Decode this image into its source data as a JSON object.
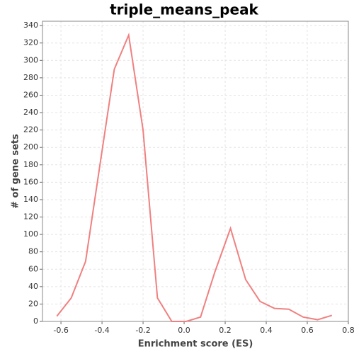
{
  "chart_data": {
    "type": "line",
    "title": "triple_means_peak",
    "x_label": "Enrichment score (ES)",
    "y_label": "# of gene sets",
    "x": [
      -0.62,
      -0.55,
      -0.48,
      -0.41,
      -0.34,
      -0.27,
      -0.2,
      -0.13,
      -0.06,
      0.01,
      0.08,
      0.15,
      0.226,
      0.3,
      0.37,
      0.44,
      0.51,
      0.58,
      0.65,
      0.72
    ],
    "series": [
      {
        "name": "triple_means_peak",
        "color": "#f08080",
        "values": [
          6,
          27,
          69,
          180,
          290,
          329,
          220,
          27,
          0,
          0,
          5,
          57,
          107,
          48,
          23,
          15,
          14,
          5,
          2,
          7
        ]
      }
    ],
    "xlim": [
      -0.69,
      0.8
    ],
    "xticks": [
      -0.6,
      -0.4,
      -0.2,
      {
        "value": 0,
        "label": "0.0"
      },
      0.2,
      0.4,
      0.6,
      0.8
    ],
    "ylim": [
      0,
      345
    ],
    "yticks": [
      0,
      20,
      40,
      60,
      80,
      100,
      120,
      140,
      160,
      180,
      200,
      220,
      240,
      260,
      280,
      300,
      320,
      340
    ],
    "grid": true
  }
}
